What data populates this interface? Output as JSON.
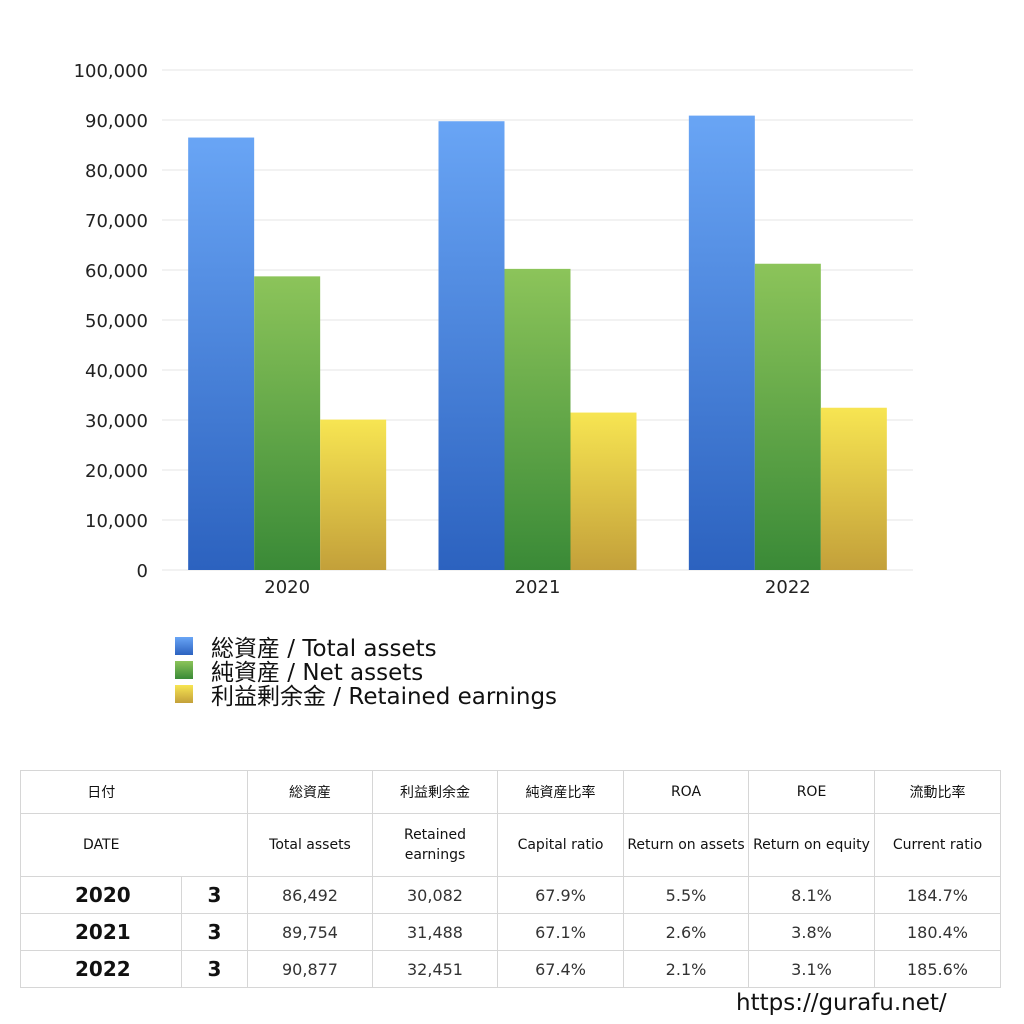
{
  "chart_data": {
    "type": "bar",
    "categories": [
      "2020",
      "2021",
      "2022"
    ],
    "series": [
      {
        "name": "総資産 / Total assets",
        "values": [
          86492,
          89754,
          90877
        ],
        "color_top": "#69a5f5",
        "color_bottom": "#2c62bf"
      },
      {
        "name": "純資産 / Net assets",
        "values": [
          58728,
          60225,
          61251
        ],
        "color_top": "#8cc45a",
        "color_bottom": "#3a8a37"
      },
      {
        "name": "利益剰余金 / Retained earnings",
        "values": [
          30082,
          31488,
          32451
        ],
        "color_top": "#f7e552",
        "color_bottom": "#c3a03a"
      }
    ],
    "yticks": [
      "0",
      "10,000",
      "20,000",
      "30,000",
      "40,000",
      "50,000",
      "60,000",
      "70,000",
      "80,000",
      "90,000",
      "100,000"
    ],
    "ylim": [
      0,
      100000
    ],
    "grid": true,
    "legend_position": "bottom-left"
  },
  "table": {
    "headers_jp": [
      "日付",
      "総資産",
      "利益剰余金",
      "純資産比率",
      "ROA",
      "ROE",
      "流動比率"
    ],
    "headers_en": [
      "DATE",
      "Total assets",
      "Retained earnings",
      "Capital ratio",
      "Return on assets",
      "Return on equity",
      "Current ratio"
    ],
    "rows": [
      {
        "year": "2020",
        "month": "3",
        "total_assets": "86,492",
        "retained": "30,082",
        "capital_ratio": "67.9%",
        "roa": "5.5%",
        "roe": "8.1%",
        "current_ratio": "184.7%"
      },
      {
        "year": "2021",
        "month": "3",
        "total_assets": "89,754",
        "retained": "31,488",
        "capital_ratio": "67.1%",
        "roa": "2.6%",
        "roe": "3.8%",
        "current_ratio": "180.4%"
      },
      {
        "year": "2022",
        "month": "3",
        "total_assets": "90,877",
        "retained": "32,451",
        "capital_ratio": "67.4%",
        "roa": "2.1%",
        "roe": "3.1%",
        "current_ratio": "185.6%"
      }
    ]
  },
  "footer": {
    "url": "https://gurafu.net/"
  }
}
